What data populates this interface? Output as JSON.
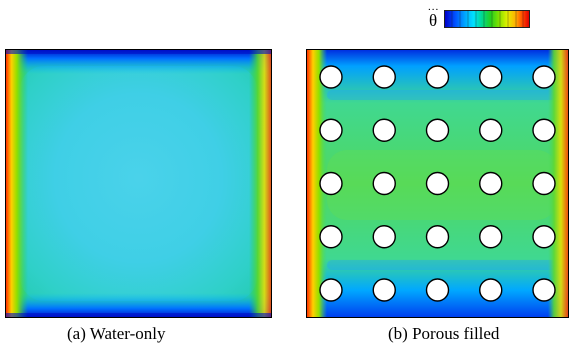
{
  "legend": {
    "variable_symbol": "θ",
    "symbol_dots": "..."
  },
  "panels": [
    {
      "id": "a",
      "caption": "(a) Water-only",
      "obstacles": false
    },
    {
      "id": "b",
      "caption": "(b) Porous filled",
      "obstacles": true
    }
  ],
  "colors": {
    "colormap": [
      "#0000c8",
      "#0050ff",
      "#00a8ff",
      "#00e0ff",
      "#00d890",
      "#20d020",
      "#80e000",
      "#e0f000",
      "#ffb000",
      "#ff4000",
      "#e00000"
    ],
    "obstacle_fill": "#ffffff",
    "obstacle_stroke": "#000000"
  },
  "obstacle_grid": {
    "rows": 5,
    "columns": 5
  }
}
